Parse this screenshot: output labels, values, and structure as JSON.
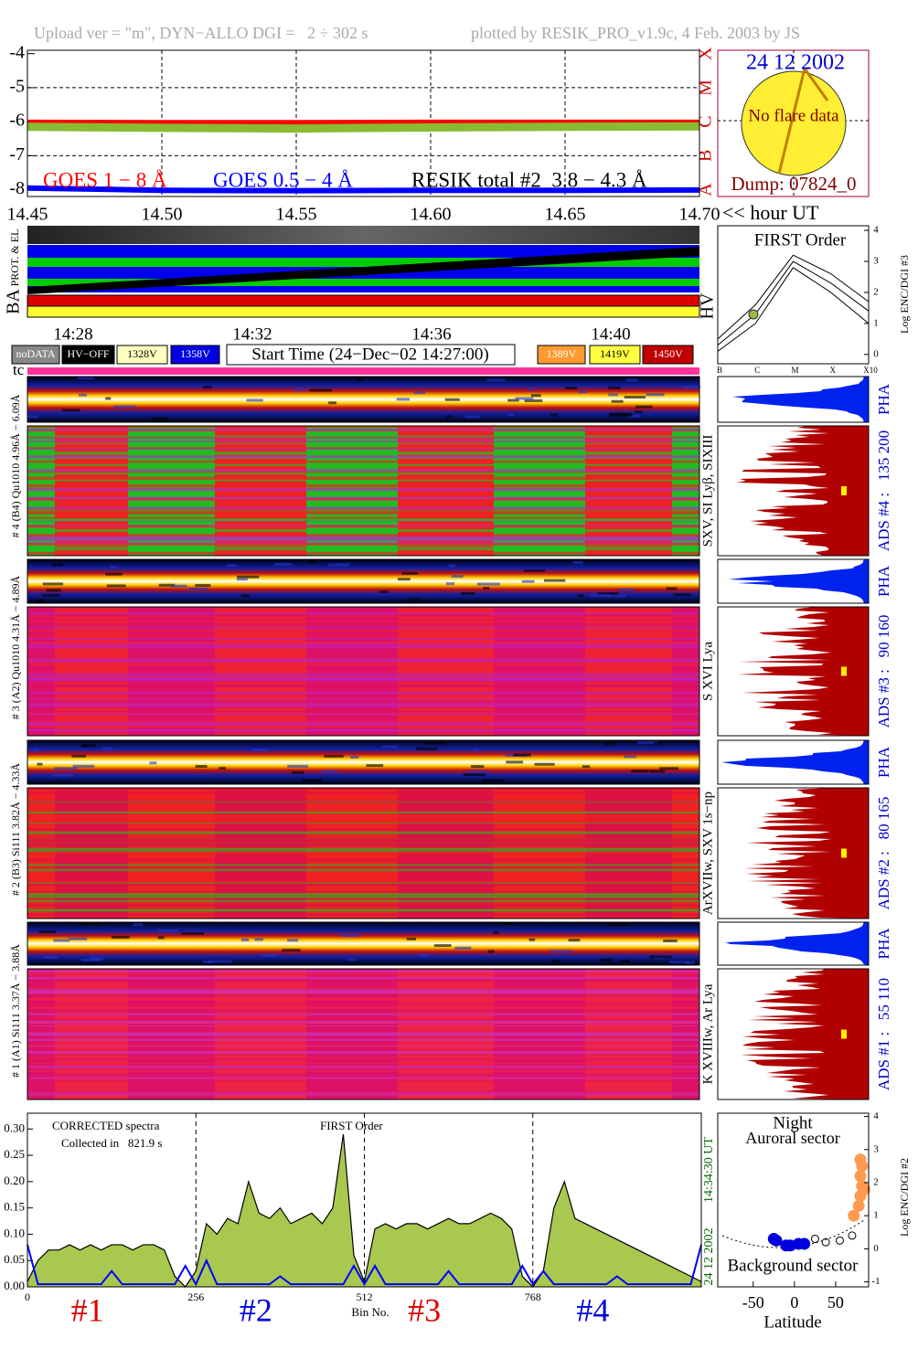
{
  "header": {
    "upload": "Upload ver = \"m\", DYN−ALLO DGI =   2 ÷ 302 s",
    "plotted": "plotted by RESIK_PRO_v1.9c, 4 Feb. 2003 by JS"
  },
  "sun": {
    "date": "24 12 2002",
    "note": "No flare data",
    "dump": "Dump: 07824_0"
  },
  "time_axis": {
    "unit_label": "<< hour UT",
    "labels": [
      "14:28",
      "14:32",
      "14:36",
      "14:40"
    ],
    "tc": "tc"
  },
  "ba_panel": {
    "left": "BA",
    "sub": "PROT. & EL",
    "right": "HV"
  },
  "legend_boxes": [
    {
      "label": "noDATA",
      "color": "#888888",
      "text_color": "#ffffff"
    },
    {
      "label": "HV−OFF",
      "color": "#000000",
      "text_color": "#ffffff"
    },
    {
      "label": "1328V",
      "color": "#ffffc0",
      "text_color": "#000000"
    },
    {
      "label": "1358V",
      "color": "#0000e0",
      "text_color": "#ffffff"
    },
    {
      "label": "1389V",
      "color": "#ff9a30",
      "text_color": "#ffffff"
    },
    {
      "label": "1419V",
      "color": "#ffff40",
      "text_color": "#000000"
    },
    {
      "label": "1450V",
      "color": "#c00000",
      "text_color": "#ffffff"
    }
  ],
  "start_time": "Start Time (24−Dec−02 14:27:00)",
  "channels": [
    {
      "label": "# 4 (B4) Qu1010 4.96Å − 6.09Å",
      "lines": "SXV, SI Lyβ, SIXIII",
      "ads": "ADS #4 :   135 200",
      "pha": "PHA"
    },
    {
      "label": "# 3 (A2) Qu1010 4.31Å − 4.89Å",
      "lines": "S XVI Lya",
      "ads": "ADS #3 :   90 160",
      "pha": "PHA"
    },
    {
      "label": "# 2 (B3) Si111 3.82Å − 4.33Å",
      "lines": "ArXVIIw, SXV 1s−np",
      "ads": "ADS #2 :   80 165",
      "pha": "PHA"
    },
    {
      "label": "# 1 (A1) Si111 3.37Å − 3.88Å",
      "lines": "K XVIIIw, Ar Lya",
      "ads": "ADS #1 :   55 110",
      "pha": "PHA"
    }
  ],
  "chart_data": [
    {
      "type": "line",
      "grid": true,
      "x": [
        14.45,
        14.5,
        14.55,
        14.6,
        14.65,
        14.7
      ],
      "xlim": [
        14.45,
        14.7
      ],
      "xticks": [
        {
          "value": 14.45,
          "label": "14.45"
        },
        {
          "value": 14.5,
          "label": "14.50"
        },
        {
          "value": 14.55,
          "label": "14.55"
        },
        {
          "value": 14.6,
          "label": "14.60"
        },
        {
          "value": 14.65,
          "label": "14.65"
        },
        {
          "value": 14.7,
          "label": "14.70"
        }
      ],
      "ylim": [
        -8.2,
        -3.9
      ],
      "yticks": [
        -4,
        -5,
        -6,
        -7,
        -8
      ],
      "flare_class_ticks": [
        {
          "value": -4,
          "label": "X"
        },
        {
          "value": -5,
          "label": "M"
        },
        {
          "value": -6,
          "label": "C"
        },
        {
          "value": -7,
          "label": "B"
        },
        {
          "value": -8,
          "label": "A"
        }
      ],
      "series": [
        {
          "name": "GOES 1 − 8 Å",
          "color": "#ff0000",
          "label_color": "#ff0000",
          "values": [
            -6.02,
            -6.03,
            -6.03,
            -6.02,
            -6.02,
            -6.02
          ]
        },
        {
          "name": "GOES 0.5 − 4 Å",
          "color": "#0000ff",
          "label_color": "#0000ff",
          "values": [
            -7.95,
            -8.02,
            -8.03,
            -8.02,
            -8.02,
            -8.01
          ]
        },
        {
          "name": "RESIK total #2  3.8 − 4.3 Å",
          "color": "#88bb33",
          "label_color": "#000000",
          "values": [
            -6.15,
            -6.18,
            -6.2,
            -6.17,
            -6.15,
            -6.14
          ]
        }
      ]
    },
    {
      "type": "area",
      "title": "FIRST Order",
      "annotations": [
        "CORRECTED spectra",
        "Collected in   821.9 s"
      ],
      "xlabel": "Bin No.",
      "side_labels": [
        "24 12 2002",
        "14:34:30 UT"
      ],
      "regions": [
        {
          "label": "#1",
          "color": "#dd0000"
        },
        {
          "label": "#2",
          "color": "#0000dd"
        },
        {
          "label": "#3",
          "color": "#dd0000"
        },
        {
          "label": "#4",
          "color": "#0000dd"
        }
      ],
      "xlim": [
        0,
        1024
      ],
      "xticks": [
        0,
        256,
        512,
        768
      ],
      "ylim": [
        0,
        0.33
      ],
      "yticks": [
        {
          "value": 0,
          "label": "0.00"
        },
        {
          "value": 0.05,
          "label": "0.05"
        },
        {
          "value": 0.1,
          "label": "0.10"
        },
        {
          "value": 0.15,
          "label": "0.15"
        },
        {
          "value": 0.2,
          "label": "0.20"
        },
        {
          "value": 0.25,
          "label": "0.25"
        },
        {
          "value": 0.3,
          "label": "0.30"
        }
      ],
      "x": [
        0,
        16,
        32,
        48,
        64,
        80,
        96,
        112,
        128,
        144,
        160,
        176,
        192,
        208,
        224,
        240,
        256,
        272,
        288,
        304,
        320,
        336,
        352,
        368,
        384,
        400,
        416,
        432,
        448,
        464,
        480,
        496,
        512,
        528,
        544,
        560,
        576,
        592,
        608,
        624,
        640,
        656,
        672,
        688,
        704,
        720,
        736,
        752,
        768,
        784,
        800,
        816,
        832,
        848,
        864,
        880,
        896,
        912,
        928,
        944,
        960,
        976,
        992,
        1008,
        1024
      ],
      "series": [
        {
          "color": "#a8c850",
          "values": [
            0.01,
            0.05,
            0.07,
            0.07,
            0.08,
            0.07,
            0.08,
            0.07,
            0.08,
            0.08,
            0.07,
            0.08,
            0.08,
            0.07,
            0.02,
            0.0,
            0.03,
            0.12,
            0.1,
            0.13,
            0.12,
            0.2,
            0.14,
            0.13,
            0.15,
            0.12,
            0.13,
            0.14,
            0.12,
            0.15,
            0.29,
            0.06,
            0.01,
            0.11,
            0.12,
            0.11,
            0.12,
            0.12,
            0.11,
            0.12,
            0.13,
            0.12,
            0.12,
            0.13,
            0.14,
            0.13,
            0.11,
            0.02,
            0.0,
            0.03,
            0.15,
            0.2,
            0.13,
            0.12,
            0.11,
            0.1,
            0.09,
            0.08,
            0.07,
            0.06,
            0.05,
            0.04,
            0.03,
            0.02,
            0.01
          ]
        },
        {
          "color": "#0000ff",
          "values": [
            0.08,
            0.005,
            0.005,
            0.005,
            0.005,
            0.005,
            0.005,
            0.005,
            0.03,
            0.005,
            0.005,
            0.005,
            0.005,
            0.005,
            0.005,
            0.04,
            0.005,
            0.05,
            0.005,
            0.005,
            0.005,
            0.005,
            0.005,
            0.005,
            0.02,
            0.005,
            0.005,
            0.005,
            0.005,
            0.005,
            0.005,
            0.04,
            0.005,
            0.04,
            0.005,
            0.005,
            0.005,
            0.005,
            0.005,
            0.005,
            0.03,
            0.005,
            0.005,
            0.005,
            0.005,
            0.005,
            0.005,
            0.04,
            0.005,
            0.03,
            0.005,
            0.005,
            0.005,
            0.005,
            0.005,
            0.005,
            0.02,
            0.005,
            0.005,
            0.005,
            0.005,
            0.005,
            0.005,
            0.005,
            0.08
          ]
        }
      ]
    },
    {
      "type": "scatter",
      "title": "Night",
      "subtitle": "Auroral sector",
      "annotation": "Background sector",
      "xlabel": "Latitude",
      "ylabel": "Log ENC/DGI #2",
      "xlim": [
        -93,
        90
      ],
      "xticks": [
        -50,
        0,
        50
      ],
      "ylim": [
        -1.15,
        4.1
      ],
      "yticks": [
        -1,
        0,
        1,
        2,
        3,
        4
      ],
      "series": [
        {
          "color": "#0000dd",
          "x": [
            -25,
            -22,
            -10,
            -5,
            5,
            12
          ],
          "values": [
            0.3,
            0.25,
            0.1,
            0.1,
            0.15,
            0.15
          ]
        },
        {
          "color": "#000000",
          "x": [
            25,
            38,
            55,
            70
          ],
          "values": [
            0.3,
            0.2,
            0.25,
            0.4
          ]
        },
        {
          "color": "#ff9a50",
          "x": [
            72,
            78,
            80,
            82,
            80,
            82,
            80,
            85
          ],
          "values": [
            1.0,
            1.3,
            1.6,
            1.9,
            2.2,
            2.5,
            2.7,
            1.8
          ]
        }
      ]
    },
    {
      "type": "curve",
      "title": "FIRST Order",
      "ylabel": "Log ENC/DGI #3",
      "categories": [
        "B",
        "C",
        "M",
        "X",
        "X10"
      ],
      "ylim": [
        -0.3,
        4.15
      ],
      "yticks": [
        0,
        1,
        2,
        3,
        4
      ],
      "series": [
        {
          "color": "#000000",
          "values": [
            0.1,
            1.0,
            2.8,
            2.0,
            1.0
          ]
        },
        {
          "color": "#000000",
          "values": [
            0.3,
            1.3,
            3.0,
            2.3,
            1.4
          ]
        },
        {
          "color": "#000000",
          "values": [
            0.5,
            1.6,
            3.2,
            2.6,
            1.7
          ]
        }
      ]
    }
  ]
}
